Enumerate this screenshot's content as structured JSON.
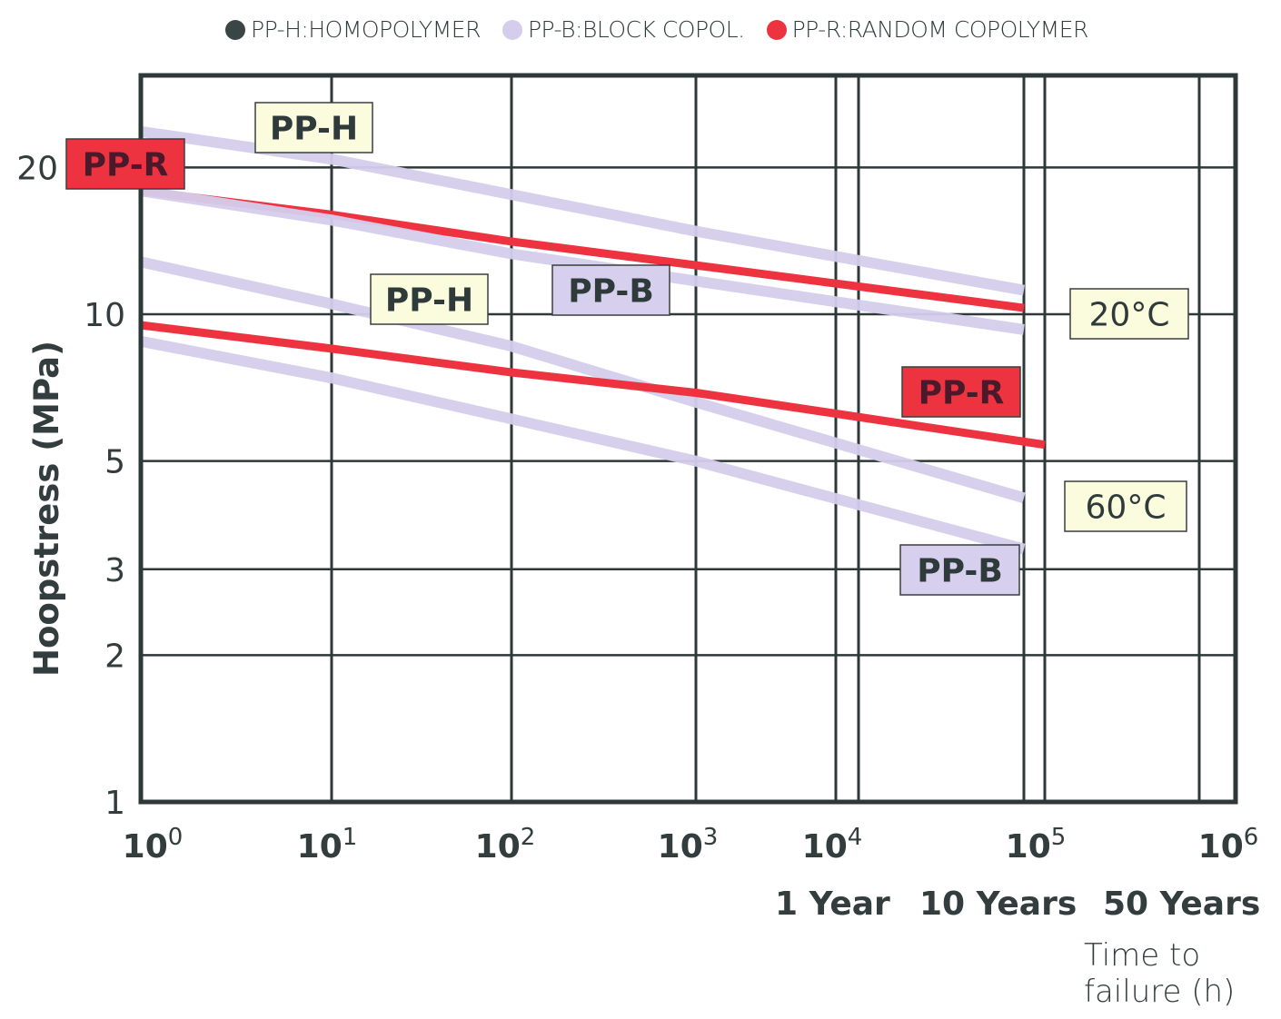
{
  "legend": [
    {
      "label": "PP-H:HOMOPOLYMER",
      "color": "#3a4646"
    },
    {
      "label": "PP-B:BLOCK COPOL.",
      "color": "#d4cdec"
    },
    {
      "label": "PP-R:RANDOM COPOLYMER",
      "color": "#ee3340"
    }
  ],
  "chart_data": {
    "type": "line",
    "title": "",
    "xlabel": "Time to failure (h)",
    "xlabel_lines": [
      "Time to",
      "failure (h)"
    ],
    "ylabel": "Hoopstress (MPa)",
    "x_scale": "log",
    "y_scale": "log",
    "xlim": [
      1,
      1000000
    ],
    "ylim": [
      1,
      30
    ],
    "grid": true,
    "x_ticks": [
      {
        "value": 1,
        "base": "10",
        "exp": "0"
      },
      {
        "value": 10,
        "base": "10",
        "exp": "1"
      },
      {
        "value": 100,
        "base": "10",
        "exp": "2"
      },
      {
        "value": 1000,
        "base": "10",
        "exp": "3"
      },
      {
        "value": 10000,
        "base": "10",
        "exp": "4"
      },
      {
        "value": 100000,
        "base": "10",
        "exp": "5"
      },
      {
        "value": 1000000,
        "base": "10",
        "exp": "6"
      }
    ],
    "x_time_labels": [
      {
        "label": "1 Year",
        "hours": 8760
      },
      {
        "label": "10 Years",
        "hours": 87600
      },
      {
        "label": "50 Years",
        "hours": 438000
      }
    ],
    "y_ticks": [
      1,
      2,
      3,
      5,
      10,
      20
    ],
    "series": [
      {
        "name": "PP-H 20°C",
        "material": "PP-H",
        "temperature": "20°C",
        "color": "#d4cdec",
        "points": [
          [
            1,
            23.7
          ],
          [
            10,
            20.8
          ],
          [
            100,
            17.6
          ],
          [
            1000,
            14.8
          ],
          [
            87600,
            11.2
          ]
        ]
      },
      {
        "name": "PP-R 20°C",
        "material": "PP-R",
        "temperature": "20°C",
        "color": "#ee3340",
        "points": [
          [
            1,
            17.9
          ],
          [
            10,
            16.0
          ],
          [
            100,
            14.1
          ],
          [
            1000,
            12.6
          ],
          [
            87600,
            10.3
          ]
        ]
      },
      {
        "name": "PP-B 20°C",
        "material": "PP-B",
        "temperature": "20°C",
        "color": "#d4cdec",
        "points": [
          [
            1,
            17.9
          ],
          [
            10,
            15.6
          ],
          [
            100,
            13.3
          ],
          [
            1000,
            11.7
          ],
          [
            87600,
            9.3
          ]
        ]
      },
      {
        "name": "PP-H 60°C",
        "material": "PP-H",
        "temperature": "60°C",
        "color": "#d4cdec",
        "points": [
          [
            1,
            12.8
          ],
          [
            10,
            10.5
          ],
          [
            100,
            8.6
          ],
          [
            1000,
            6.6
          ],
          [
            87600,
            4.2
          ]
        ]
      },
      {
        "name": "PP-R 60°C",
        "material": "PP-R",
        "temperature": "60°C",
        "color": "#ee3340",
        "points": [
          [
            1,
            9.5
          ],
          [
            10,
            8.5
          ],
          [
            100,
            7.6
          ],
          [
            1000,
            6.9
          ],
          [
            100000,
            5.4
          ]
        ]
      },
      {
        "name": "PP-B 60°C",
        "material": "PP-B",
        "temperature": "60°C",
        "color": "#d4cdec",
        "points": [
          [
            1,
            8.8
          ],
          [
            10,
            7.4
          ],
          [
            100,
            6.1
          ],
          [
            1000,
            5.0
          ],
          [
            87600,
            3.3
          ]
        ]
      }
    ],
    "annotations": [
      {
        "text": "PP-R",
        "style": "red",
        "near": "20°C PP-R start"
      },
      {
        "text": "PP-H",
        "style": "cream",
        "near": "20°C PP-H"
      },
      {
        "text": "PP-H",
        "style": "cream",
        "near": "60°C PP-H"
      },
      {
        "text": "PP-B",
        "style": "lavender",
        "near": "20°C PP-B"
      },
      {
        "text": "20°C",
        "style": "cream",
        "near": "20°C group end"
      },
      {
        "text": "PP-R",
        "style": "red",
        "near": "60°C PP-R end"
      },
      {
        "text": "60°C",
        "style": "cream",
        "near": "60°C group end"
      },
      {
        "text": "PP-B",
        "style": "lavender",
        "near": "60°C PP-B end"
      }
    ]
  },
  "styles": {
    "red_fill": "#ee3340",
    "cream_fill": "#fbfbdd",
    "lavender_fill": "#d6d0ee",
    "grid_color": "#2e3838",
    "text_color": "#333d3d"
  }
}
